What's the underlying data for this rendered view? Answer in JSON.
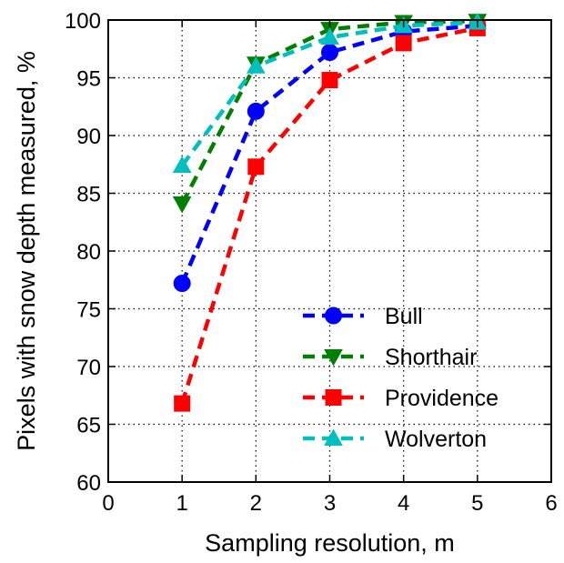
{
  "chart_data": {
    "type": "line",
    "xlabel": "Sampling resolution, m",
    "ylabel": "Pixels with snow depth measured, %",
    "xlim": [
      0,
      6
    ],
    "ylim": [
      60,
      100
    ],
    "xticks": [
      "0",
      "1",
      "2",
      "3",
      "4",
      "5",
      "6"
    ],
    "yticks": [
      "60",
      "65",
      "70",
      "75",
      "80",
      "85",
      "90",
      "95",
      "100"
    ],
    "grid": true,
    "legend_position": "lower-right",
    "x": [
      1,
      2,
      3,
      4,
      5
    ],
    "series": [
      {
        "name": "Bull",
        "values": [
          77.2,
          92.1,
          97.2,
          99.0,
          99.5
        ],
        "color": "#0000ff",
        "marker": "circle"
      },
      {
        "name": "Shorthair",
        "values": [
          84.1,
          96.2,
          99.2,
          99.8,
          99.9
        ],
        "color": "#008000",
        "marker": "triangle-down"
      },
      {
        "name": "Providence",
        "values": [
          66.8,
          87.3,
          94.8,
          98.0,
          99.3
        ],
        "color": "#ff0000",
        "marker": "square"
      },
      {
        "name": "Wolverton",
        "values": [
          87.4,
          96.0,
          98.5,
          99.5,
          99.8
        ],
        "color": "#00bfbf",
        "marker": "triangle-up"
      }
    ]
  }
}
